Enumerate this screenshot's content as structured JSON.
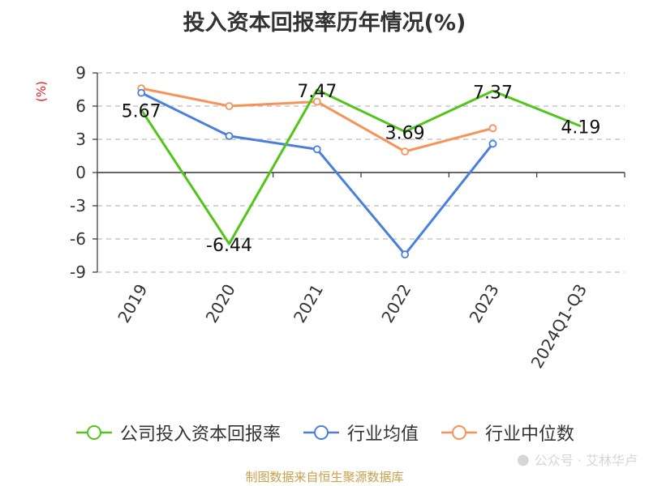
{
  "title": "投入资本回报率历年情况(%)",
  "ylabel": "(%)",
  "source": "制图数据来自恒生聚源数据库",
  "watermark": "公众号 · 艾林华卢",
  "colors": {
    "company": "#52c41a",
    "industry_avg": "#4a7fe0",
    "industry_median": "#f89257",
    "axis": "#333333",
    "grid": "#bbbbbb"
  },
  "chart_data": {
    "type": "line",
    "title": "投入资本回报率历年情况(%)",
    "ylabel": "(%)",
    "xlabel": "",
    "categories": [
      "2019",
      "2020",
      "2021",
      "2022",
      "2023",
      "2024Q1-Q3"
    ],
    "ylim": [
      -9,
      9
    ],
    "yticks": [
      9,
      6,
      3,
      0,
      -3,
      -6,
      -9
    ],
    "ytick_labels": [
      "9",
      "6",
      "3",
      "0",
      "-3",
      "-6",
      "-9"
    ],
    "grid": true,
    "legend": "bottom",
    "series": [
      {
        "name": "公司投入资本回报率",
        "values": [
          5.67,
          -6.44,
          7.47,
          3.69,
          7.37,
          4.19
        ],
        "labels": [
          "5.67",
          "-6.44",
          "7.47",
          "3.69",
          "7.37",
          "4.19"
        ],
        "color": "#52c41a"
      },
      {
        "name": "行业均值",
        "values": [
          7.2,
          3.3,
          2.1,
          -7.4,
          2.6,
          null
        ],
        "color": "#4a7fe0"
      },
      {
        "name": "行业中位数",
        "values": [
          7.6,
          6.0,
          6.4,
          1.9,
          4.0,
          null
        ],
        "color": "#f89257"
      }
    ]
  }
}
